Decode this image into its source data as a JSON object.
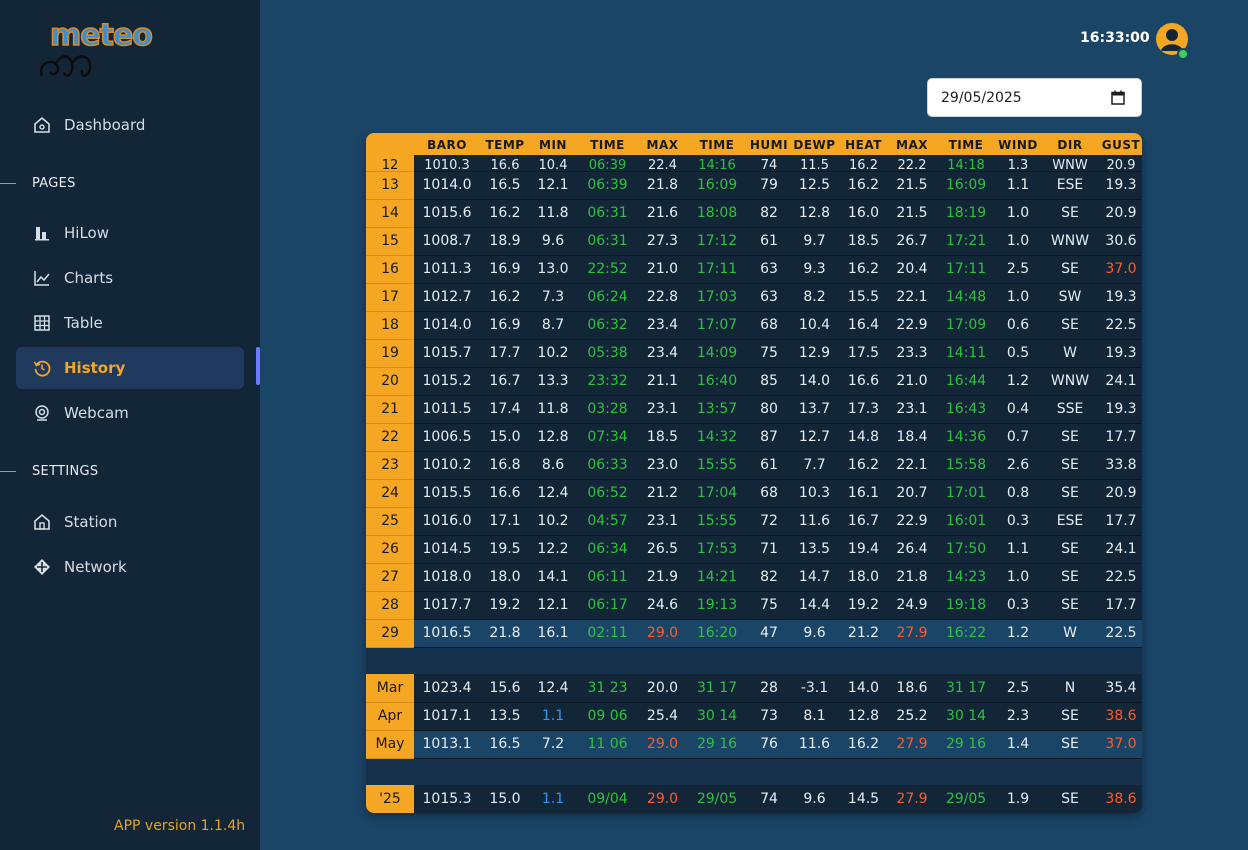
{
  "app": {
    "logo_text": "meteo",
    "version": "APP version 1.1.4h"
  },
  "sidebar": {
    "dashboard": "Dashboard",
    "pages_section": "PAGES",
    "pages": [
      {
        "label": "HiLow",
        "icon": "bar-chart-icon"
      },
      {
        "label": "Charts",
        "icon": "line-chart-icon"
      },
      {
        "label": "Table",
        "icon": "table-grid-icon"
      },
      {
        "label": "History",
        "icon": "history-icon",
        "active": true
      },
      {
        "label": "Webcam",
        "icon": "webcam-icon"
      }
    ],
    "settings_section": "SETTINGS",
    "settings": [
      {
        "label": "Station",
        "icon": "home-icon"
      },
      {
        "label": "Network",
        "icon": "network-icon"
      }
    ]
  },
  "header": {
    "clock": "16:33:00",
    "date_value": "29/05/2025"
  },
  "table": {
    "columns": [
      "",
      "BARO",
      "TEMP",
      "MIN",
      "TIME",
      "MAX",
      "TIME",
      "HUMI",
      "DEWP",
      "HEAT",
      "MAX",
      "TIME",
      "WIND",
      "DIR",
      "GUST"
    ],
    "partial_row": [
      "12",
      "1010.3",
      "16.6",
      "10.4",
      "06:39",
      "22.4",
      "14:16",
      "74",
      "11.5",
      "16.2",
      "22.2",
      "14:18",
      "1.3",
      "WNW",
      "20.9"
    ],
    "days": [
      [
        "13",
        "1014.0",
        "16.5",
        "12.1",
        "06:39",
        "21.8",
        "16:09",
        "79",
        "12.5",
        "16.2",
        "21.5",
        "16:09",
        "1.1",
        "ESE",
        "19.3"
      ],
      [
        "14",
        "1015.6",
        "16.2",
        "11.8",
        "06:31",
        "21.6",
        "18:08",
        "82",
        "12.8",
        "16.0",
        "21.5",
        "18:19",
        "1.0",
        "SE",
        "20.9"
      ],
      [
        "15",
        "1008.7",
        "18.9",
        "9.6",
        "06:31",
        "27.3",
        "17:12",
        "61",
        "9.7",
        "18.5",
        "26.7",
        "17:21",
        "1.0",
        "WNW",
        "30.6"
      ],
      [
        "16",
        "1011.3",
        "16.9",
        "13.0",
        "22:52",
        "21.0",
        "17:11",
        "63",
        "9.3",
        "16.2",
        "20.4",
        "17:11",
        "2.5",
        "SE",
        "37.0"
      ],
      [
        "17",
        "1012.7",
        "16.2",
        "7.3",
        "06:24",
        "22.8",
        "17:03",
        "63",
        "8.2",
        "15.5",
        "22.1",
        "14:48",
        "1.0",
        "SW",
        "19.3"
      ],
      [
        "18",
        "1014.0",
        "16.9",
        "8.7",
        "06:32",
        "23.4",
        "17:07",
        "68",
        "10.4",
        "16.4",
        "22.9",
        "17:09",
        "0.6",
        "SE",
        "22.5"
      ],
      [
        "19",
        "1015.7",
        "17.7",
        "10.2",
        "05:38",
        "23.4",
        "14:09",
        "75",
        "12.9",
        "17.5",
        "23.3",
        "14:11",
        "0.5",
        "W",
        "19.3"
      ],
      [
        "20",
        "1015.2",
        "16.7",
        "13.3",
        "23:32",
        "21.1",
        "16:40",
        "85",
        "14.0",
        "16.6",
        "21.0",
        "16:44",
        "1.2",
        "WNW",
        "24.1"
      ],
      [
        "21",
        "1011.5",
        "17.4",
        "11.8",
        "03:28",
        "23.1",
        "13:57",
        "80",
        "13.7",
        "17.3",
        "23.1",
        "16:43",
        "0.4",
        "SSE",
        "19.3"
      ],
      [
        "22",
        "1006.5",
        "15.0",
        "12.8",
        "07:34",
        "18.5",
        "14:32",
        "87",
        "12.7",
        "14.8",
        "18.4",
        "14:36",
        "0.7",
        "SE",
        "17.7"
      ],
      [
        "23",
        "1010.2",
        "16.8",
        "8.6",
        "06:33",
        "23.0",
        "15:55",
        "61",
        "7.7",
        "16.2",
        "22.1",
        "15:58",
        "2.6",
        "SE",
        "33.8"
      ],
      [
        "24",
        "1015.5",
        "16.6",
        "12.4",
        "06:52",
        "21.2",
        "17:04",
        "68",
        "10.3",
        "16.1",
        "20.7",
        "17:01",
        "0.8",
        "SE",
        "20.9"
      ],
      [
        "25",
        "1016.0",
        "17.1",
        "10.2",
        "04:57",
        "23.1",
        "15:55",
        "72",
        "11.6",
        "16.7",
        "22.9",
        "16:01",
        "0.3",
        "ESE",
        "17.7"
      ],
      [
        "26",
        "1014.5",
        "19.5",
        "12.2",
        "06:34",
        "26.5",
        "17:53",
        "71",
        "13.5",
        "19.4",
        "26.4",
        "17:50",
        "1.1",
        "SE",
        "24.1"
      ],
      [
        "27",
        "1018.0",
        "18.0",
        "14.1",
        "06:11",
        "21.9",
        "14:21",
        "82",
        "14.7",
        "18.0",
        "21.8",
        "14:23",
        "1.0",
        "SE",
        "22.5"
      ],
      [
        "28",
        "1017.7",
        "19.2",
        "12.1",
        "06:17",
        "24.6",
        "19:13",
        "75",
        "14.4",
        "19.2",
        "24.9",
        "19:18",
        "0.3",
        "SE",
        "17.7"
      ],
      [
        "29",
        "1016.5",
        "21.8",
        "16.1",
        "02:11",
        "29.0",
        "16:20",
        "47",
        "9.6",
        "21.2",
        "27.9",
        "16:22",
        "1.2",
        "W",
        "22.5"
      ]
    ],
    "months": [
      [
        "Mar",
        "1023.4",
        "15.6",
        "12.4",
        "31 23",
        "20.0",
        "31 17",
        "28",
        "-3.1",
        "14.0",
        "18.6",
        "31 17",
        "2.5",
        "N",
        "35.4"
      ],
      [
        "Apr",
        "1017.1",
        "13.5",
        "1.1",
        "09 06",
        "25.4",
        "30 14",
        "73",
        "8.1",
        "12.8",
        "25.2",
        "30 14",
        "2.3",
        "SE",
        "38.6"
      ],
      [
        "May",
        "1013.1",
        "16.5",
        "7.2",
        "11 06",
        "29.0",
        "29 16",
        "76",
        "11.6",
        "16.2",
        "27.9",
        "29 16",
        "1.4",
        "SE",
        "37.0"
      ]
    ],
    "year": [
      "'25",
      "1015.3",
      "15.0",
      "1.1",
      "09/04",
      "29.0",
      "29/05",
      "74",
      "9.6",
      "14.5",
      "27.9",
      "29/05",
      "1.9",
      "SE",
      "38.6"
    ]
  },
  "colors": {
    "accent": "#f5a623",
    "time_green": "#2fc13e",
    "record_red": "#ff5a2a",
    "record_blue": "#3c8ff0"
  }
}
